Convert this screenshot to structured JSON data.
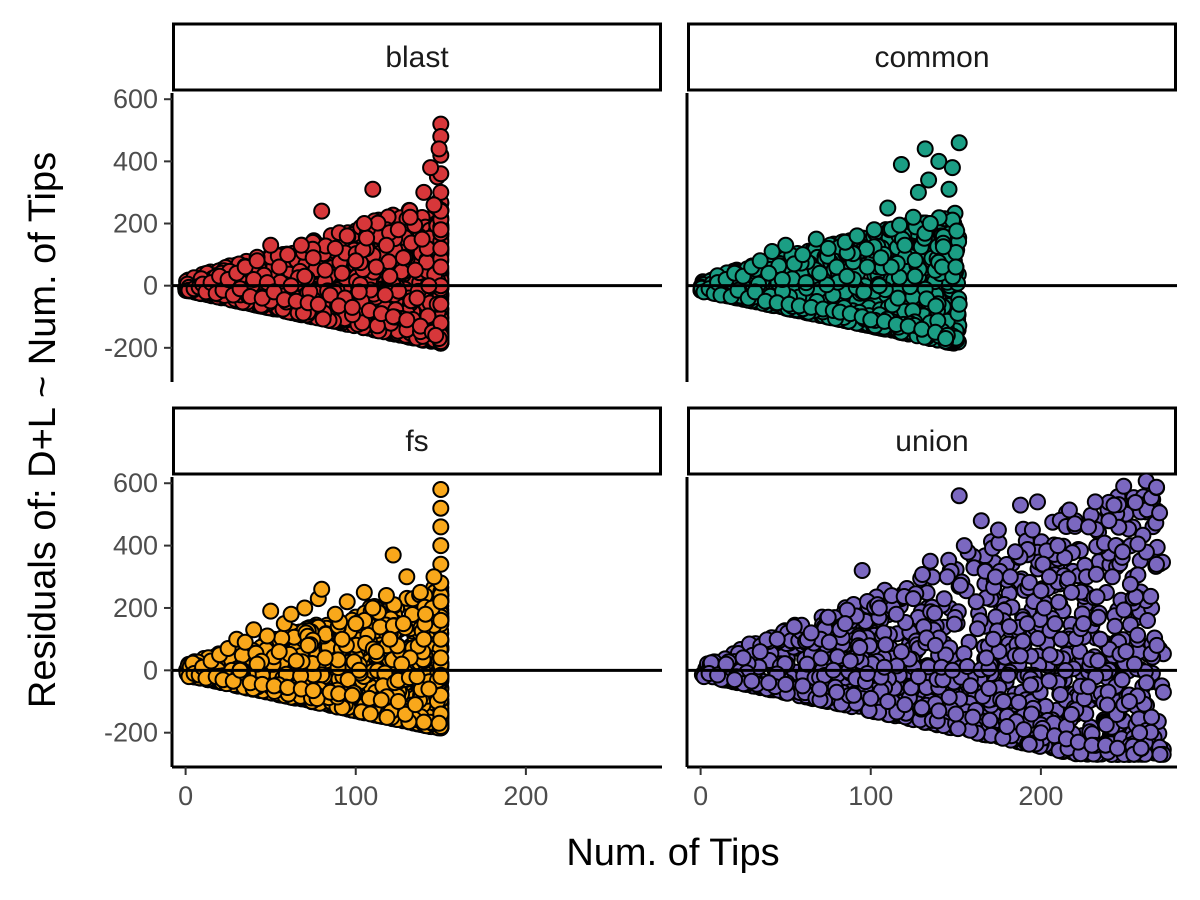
{
  "chart_data": {
    "type": "scatter",
    "xlabel": "Num. of Tips",
    "ylabel": "Residuals of: D+L ~ Num. of Tips",
    "xlim": [
      -8,
      280
    ],
    "ylim": [
      -310,
      620
    ],
    "x_ticks": [
      0,
      100,
      200
    ],
    "x_tick_labels": [
      "0",
      "100",
      "200"
    ],
    "y_ticks": [
      -200,
      0,
      200,
      400,
      600
    ],
    "y_tick_labels": [
      "-200",
      "0",
      "200",
      "400",
      "600"
    ],
    "reference_line": 0,
    "facets": [
      {
        "label": "blast",
        "color": "#d7373a",
        "x_max": 150,
        "points": [
          [
            2,
            -15
          ],
          [
            5,
            -10
          ],
          [
            8,
            -5
          ],
          [
            10,
            5
          ],
          [
            12,
            -20
          ],
          [
            15,
            10
          ],
          [
            18,
            -25
          ],
          [
            20,
            30
          ],
          [
            22,
            -15
          ],
          [
            25,
            20
          ],
          [
            28,
            -30
          ],
          [
            30,
            40
          ],
          [
            32,
            -10
          ],
          [
            35,
            60
          ],
          [
            38,
            -35
          ],
          [
            40,
            20
          ],
          [
            42,
            80
          ],
          [
            45,
            -40
          ],
          [
            48,
            10
          ],
          [
            50,
            130
          ],
          [
            52,
            -20
          ],
          [
            55,
            60
          ],
          [
            58,
            -45
          ],
          [
            60,
            100
          ],
          [
            62,
            0
          ],
          [
            65,
            -50
          ],
          [
            68,
            130
          ],
          [
            70,
            30
          ],
          [
            72,
            -55
          ],
          [
            75,
            90
          ],
          [
            78,
            -60
          ],
          [
            80,
            240
          ],
          [
            82,
            50
          ],
          [
            85,
            -30
          ],
          [
            88,
            120
          ],
          [
            90,
            -65
          ],
          [
            92,
            40
          ],
          [
            95,
            160
          ],
          [
            98,
            -70
          ],
          [
            100,
            80
          ],
          [
            102,
            -20
          ],
          [
            105,
            200
          ],
          [
            108,
            -80
          ],
          [
            110,
            310
          ],
          [
            112,
            60
          ],
          [
            115,
            -90
          ],
          [
            118,
            130
          ],
          [
            120,
            30
          ],
          [
            122,
            -100
          ],
          [
            125,
            180
          ],
          [
            128,
            90
          ],
          [
            130,
            -110
          ],
          [
            132,
            220
          ],
          [
            135,
            50
          ],
          [
            138,
            -130
          ],
          [
            140,
            300
          ],
          [
            142,
            120
          ],
          [
            145,
            -150
          ],
          [
            148,
            350
          ],
          [
            150,
            520
          ],
          [
            150,
            480
          ],
          [
            150,
            420
          ],
          [
            150,
            360
          ],
          [
            150,
            300
          ],
          [
            150,
            240
          ],
          [
            150,
            180
          ],
          [
            150,
            120
          ],
          [
            150,
            60
          ],
          [
            150,
            0
          ],
          [
            150,
            -60
          ],
          [
            150,
            -120
          ],
          [
            150,
            -180
          ],
          [
            149,
            440
          ],
          [
            149,
            -170
          ],
          [
            146,
            260
          ],
          [
            144,
            380
          ],
          [
            147,
            -160
          ],
          [
            143,
            0
          ],
          [
            139,
            150
          ],
          [
            136,
            -40
          ]
        ]
      },
      {
        "label": "common",
        "color": "#1b9e84",
        "x_max": 152,
        "points": [
          [
            2,
            -20
          ],
          [
            5,
            -10
          ],
          [
            8,
            -25
          ],
          [
            10,
            10
          ],
          [
            12,
            -30
          ],
          [
            15,
            20
          ],
          [
            18,
            -35
          ],
          [
            20,
            40
          ],
          [
            22,
            -15
          ],
          [
            25,
            30
          ],
          [
            28,
            -40
          ],
          [
            30,
            60
          ],
          [
            32,
            -20
          ],
          [
            35,
            80
          ],
          [
            38,
            -50
          ],
          [
            40,
            40
          ],
          [
            42,
            110
          ],
          [
            45,
            -55
          ],
          [
            48,
            20
          ],
          [
            50,
            130
          ],
          [
            52,
            -60
          ],
          [
            55,
            70
          ],
          [
            58,
            -65
          ],
          [
            60,
            100
          ],
          [
            62,
            10
          ],
          [
            65,
            -70
          ],
          [
            68,
            150
          ],
          [
            70,
            40
          ],
          [
            72,
            -75
          ],
          [
            75,
            120
          ],
          [
            78,
            -80
          ],
          [
            80,
            60
          ],
          [
            82,
            -85
          ],
          [
            85,
            140
          ],
          [
            88,
            -90
          ],
          [
            90,
            20
          ],
          [
            92,
            160
          ],
          [
            95,
            -100
          ],
          [
            98,
            60
          ],
          [
            100,
            -110
          ],
          [
            102,
            180
          ],
          [
            105,
            0
          ],
          [
            108,
            -115
          ],
          [
            110,
            250
          ],
          [
            112,
            60
          ],
          [
            115,
            -125
          ],
          [
            118,
            390
          ],
          [
            120,
            130
          ],
          [
            122,
            -130
          ],
          [
            125,
            220
          ],
          [
            128,
            300
          ],
          [
            130,
            -140
          ],
          [
            132,
            440
          ],
          [
            135,
            200
          ],
          [
            138,
            -150
          ],
          [
            140,
            400
          ],
          [
            142,
            60
          ],
          [
            145,
            -160
          ],
          [
            148,
            380
          ],
          [
            150,
            60
          ],
          [
            152,
            460
          ],
          [
            152,
            -60
          ],
          [
            146,
            310
          ],
          [
            144,
            -170
          ],
          [
            134,
            340
          ],
          [
            126,
            30
          ],
          [
            116,
            -40
          ],
          [
            106,
            90
          ],
          [
            96,
            -20
          ],
          [
            86,
            30
          ]
        ]
      },
      {
        "label": "fs",
        "color": "#f9a81b",
        "x_max": 150,
        "points": [
          [
            2,
            -20
          ],
          [
            5,
            -10
          ],
          [
            8,
            -15
          ],
          [
            10,
            10
          ],
          [
            12,
            -25
          ],
          [
            15,
            30
          ],
          [
            18,
            -20
          ],
          [
            20,
            50
          ],
          [
            22,
            -30
          ],
          [
            25,
            70
          ],
          [
            28,
            -35
          ],
          [
            30,
            100
          ],
          [
            32,
            0
          ],
          [
            35,
            90
          ],
          [
            38,
            -40
          ],
          [
            40,
            130
          ],
          [
            42,
            20
          ],
          [
            45,
            -45
          ],
          [
            48,
            110
          ],
          [
            50,
            190
          ],
          [
            52,
            -50
          ],
          [
            55,
            60
          ],
          [
            58,
            150
          ],
          [
            60,
            -55
          ],
          [
            62,
            180
          ],
          [
            65,
            30
          ],
          [
            68,
            -60
          ],
          [
            70,
            200
          ],
          [
            72,
            80
          ],
          [
            75,
            -65
          ],
          [
            78,
            230
          ],
          [
            80,
            260
          ],
          [
            82,
            40
          ],
          [
            85,
            -70
          ],
          [
            88,
            180
          ],
          [
            90,
            -75
          ],
          [
            92,
            100
          ],
          [
            95,
            220
          ],
          [
            98,
            -80
          ],
          [
            100,
            150
          ],
          [
            102,
            0
          ],
          [
            105,
            250
          ],
          [
            108,
            -90
          ],
          [
            110,
            200
          ],
          [
            112,
            60
          ],
          [
            115,
            -95
          ],
          [
            118,
            240
          ],
          [
            120,
            100
          ],
          [
            122,
            370
          ],
          [
            125,
            -100
          ],
          [
            128,
            150
          ],
          [
            130,
            300
          ],
          [
            132,
            40
          ],
          [
            135,
            -110
          ],
          [
            138,
            250
          ],
          [
            140,
            100
          ],
          [
            145,
            200
          ],
          [
            148,
            -100
          ],
          [
            150,
            580
          ],
          [
            150,
            520
          ],
          [
            150,
            460
          ],
          [
            150,
            400
          ],
          [
            150,
            340
          ],
          [
            150,
            280
          ],
          [
            150,
            220
          ],
          [
            150,
            160
          ],
          [
            150,
            100
          ],
          [
            150,
            40
          ],
          [
            150,
            -20
          ],
          [
            150,
            -80
          ],
          [
            150,
            -140
          ],
          [
            150,
            -180
          ],
          [
            149,
            -170
          ],
          [
            146,
            300
          ],
          [
            143,
            -60
          ],
          [
            141,
            180
          ],
          [
            136,
            -20
          ],
          [
            127,
            20
          ]
        ]
      },
      {
        "label": "union",
        "color": "#7b68c0",
        "x_max": 272,
        "points": [
          [
            2,
            -20
          ],
          [
            5,
            -10
          ],
          [
            10,
            -15
          ],
          [
            15,
            20
          ],
          [
            20,
            -30
          ],
          [
            25,
            40
          ],
          [
            30,
            -35
          ],
          [
            35,
            60
          ],
          [
            40,
            -40
          ],
          [
            45,
            100
          ],
          [
            50,
            -45
          ],
          [
            55,
            140
          ],
          [
            60,
            -50
          ],
          [
            65,
            120
          ],
          [
            70,
            -60
          ],
          [
            75,
            170
          ],
          [
            80,
            -70
          ],
          [
            85,
            150
          ],
          [
            90,
            -80
          ],
          [
            95,
            320
          ],
          [
            100,
            -90
          ],
          [
            105,
            200
          ],
          [
            110,
            -100
          ],
          [
            115,
            180
          ],
          [
            120,
            -110
          ],
          [
            125,
            230
          ],
          [
            130,
            -120
          ],
          [
            135,
            350
          ],
          [
            140,
            -130
          ],
          [
            145,
            300
          ],
          [
            150,
            -140
          ],
          [
            152,
            560
          ],
          [
            155,
            400
          ],
          [
            160,
            -150
          ],
          [
            162,
            220
          ],
          [
            165,
            480
          ],
          [
            170,
            -160
          ],
          [
            172,
            100
          ],
          [
            175,
            450
          ],
          [
            180,
            -180
          ],
          [
            182,
            300
          ],
          [
            185,
            380
          ],
          [
            188,
            530
          ],
          [
            190,
            -190
          ],
          [
            192,
            150
          ],
          [
            195,
            450
          ],
          [
            198,
            540
          ],
          [
            200,
            -200
          ],
          [
            202,
            200
          ],
          [
            205,
            300
          ],
          [
            208,
            -210
          ],
          [
            210,
            400
          ],
          [
            212,
            100
          ],
          [
            215,
            -220
          ],
          [
            218,
            250
          ],
          [
            220,
            470
          ],
          [
            222,
            -230
          ],
          [
            225,
            150
          ],
          [
            228,
            460
          ],
          [
            230,
            -240
          ],
          [
            232,
            540
          ],
          [
            235,
            100
          ],
          [
            238,
            -240
          ],
          [
            240,
            480
          ],
          [
            242,
            300
          ],
          [
            245,
            -250
          ],
          [
            248,
            380
          ],
          [
            250,
            60
          ],
          [
            252,
            -100
          ],
          [
            255,
            20
          ],
          [
            258,
            -200
          ],
          [
            262,
            -40
          ],
          [
            265,
            -150
          ],
          [
            270,
            -270
          ],
          [
            272,
            -70
          ],
          [
            243,
            530
          ],
          [
            178,
            -100
          ],
          [
            168,
            40
          ],
          [
            148,
            0
          ],
          [
            138,
            80
          ],
          [
            128,
            -20
          ],
          [
            118,
            60
          ],
          [
            108,
            10
          ],
          [
            98,
            -10
          ],
          [
            88,
            30
          ],
          [
            78,
            0
          ]
        ]
      }
    ]
  }
}
